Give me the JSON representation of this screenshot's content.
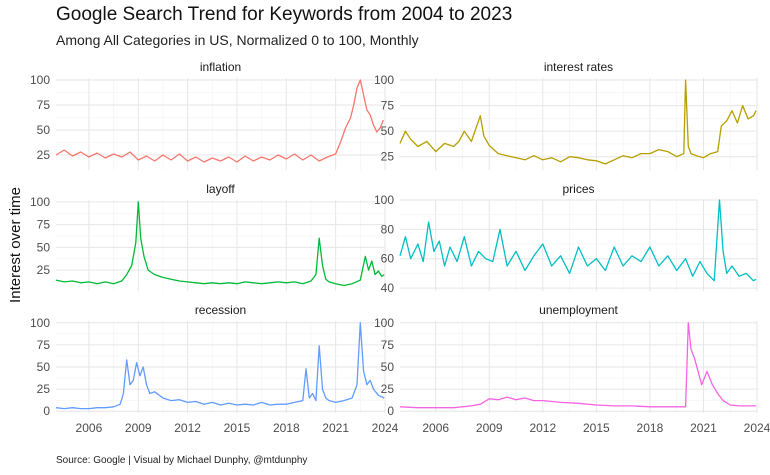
{
  "header": {
    "title": "Google Search Trend for Keywords from 2004 to 2023",
    "subtitle": "Among All Categories in US, Normalized 0 to 100, Monthly"
  },
  "footer": {
    "caption": "Source: Google | Visual by Michael Dunphy, @mtdunphy"
  },
  "chart_data": {
    "type": "line",
    "title": "Google Search Trend for Keywords from 2004 to 2023",
    "ylabel": "Interest over time",
    "xlabel": "",
    "xlim": [
      2004,
      2024
    ],
    "xticks": [
      2006,
      2009,
      2012,
      2015,
      2018,
      2021,
      2024
    ],
    "series": [
      {
        "name": "inflation",
        "color": "#F8766D",
        "ylim": [
          10,
          102
        ],
        "yticks": [
          25,
          50,
          75,
          100
        ],
        "x": [
          2004,
          2004.5,
          2005,
          2005.5,
          2006,
          2006.5,
          2007,
          2007.5,
          2008,
          2008.5,
          2009,
          2009.5,
          2010,
          2010.5,
          2011,
          2011.5,
          2012,
          2012.5,
          2013,
          2013.5,
          2014,
          2014.5,
          2015,
          2015.5,
          2016,
          2016.5,
          2017,
          2017.5,
          2018,
          2018.5,
          2019,
          2019.5,
          2020,
          2020.5,
          2021,
          2021.3,
          2021.6,
          2021.9,
          2022.1,
          2022.3,
          2022.5,
          2022.7,
          2022.9,
          2023.1,
          2023.3,
          2023.5,
          2023.7,
          2023.9
        ],
        "values": [
          25,
          30,
          24,
          28,
          23,
          27,
          22,
          26,
          23,
          28,
          20,
          24,
          19,
          25,
          20,
          26,
          19,
          23,
          18,
          22,
          19,
          23,
          18,
          24,
          19,
          23,
          20,
          25,
          21,
          26,
          20,
          25,
          19,
          23,
          26,
          38,
          52,
          62,
          75,
          92,
          100,
          85,
          70,
          65,
          55,
          48,
          52,
          60
        ]
      },
      {
        "name": "interest rates",
        "color": "#B79F00",
        "ylim": [
          12,
          102
        ],
        "yticks": [
          25,
          50,
          75,
          100
        ],
        "x": [
          2004,
          2004.3,
          2004.6,
          2005,
          2005.5,
          2006,
          2006.5,
          2007,
          2007.3,
          2007.6,
          2008,
          2008.5,
          2008.7,
          2009,
          2009.5,
          2010,
          2010.5,
          2011,
          2011.5,
          2012,
          2012.5,
          2013,
          2013.5,
          2014,
          2014.5,
          2015,
          2015.5,
          2016,
          2016.5,
          2017,
          2017.5,
          2018,
          2018.5,
          2019,
          2019.5,
          2019.9,
          2020,
          2020.15,
          2020.3,
          2020.6,
          2021,
          2021.4,
          2021.8,
          2022,
          2022.3,
          2022.6,
          2022.9,
          2023.2,
          2023.5,
          2023.8,
          2023.95
        ],
        "values": [
          38,
          50,
          42,
          35,
          40,
          30,
          38,
          35,
          40,
          50,
          40,
          65,
          45,
          36,
          28,
          26,
          24,
          22,
          26,
          22,
          24,
          20,
          25,
          24,
          22,
          21,
          18,
          22,
          26,
          24,
          28,
          28,
          32,
          30,
          25,
          28,
          100,
          35,
          28,
          26,
          24,
          28,
          30,
          55,
          60,
          70,
          58,
          75,
          62,
          65,
          70
        ]
      },
      {
        "name": "layoff",
        "color": "#00BA38",
        "ylim": [
          2,
          102
        ],
        "yticks": [
          25,
          50,
          75,
          100
        ],
        "x": [
          2004,
          2004.5,
          2005,
          2005.5,
          2006,
          2006.5,
          2007,
          2007.5,
          2008,
          2008.3,
          2008.6,
          2008.85,
          2009,
          2009.15,
          2009.35,
          2009.6,
          2010,
          2010.5,
          2011,
          2011.5,
          2012,
          2012.5,
          2013,
          2013.5,
          2014,
          2014.5,
          2015,
          2015.5,
          2016,
          2016.5,
          2017,
          2017.5,
          2018,
          2018.5,
          2019,
          2019.5,
          2019.8,
          2020,
          2020.2,
          2020.4,
          2020.6,
          2021,
          2021.5,
          2022,
          2022.5,
          2022.8,
          2023,
          2023.2,
          2023.4,
          2023.6,
          2023.8,
          2023.95
        ],
        "values": [
          14,
          12,
          13,
          11,
          12,
          10,
          12,
          10,
          13,
          20,
          30,
          55,
          100,
          60,
          40,
          25,
          20,
          17,
          15,
          13,
          12,
          11,
          10,
          11,
          10,
          11,
          10,
          12,
          11,
          10,
          11,
          12,
          11,
          12,
          10,
          13,
          20,
          60,
          30,
          15,
          12,
          10,
          8,
          10,
          14,
          40,
          25,
          35,
          20,
          24,
          18,
          20
        ]
      },
      {
        "name": "prices",
        "color": "#00BFC4",
        "ylim": [
          38,
          100
        ],
        "yticks": [
          40,
          60,
          80,
          100
        ],
        "x": [
          2004,
          2004.3,
          2004.6,
          2005,
          2005.3,
          2005.6,
          2005.9,
          2006.2,
          2006.5,
          2006.8,
          2007.2,
          2007.6,
          2008,
          2008.4,
          2008.8,
          2009.2,
          2009.6,
          2010,
          2010.5,
          2011,
          2011.5,
          2012,
          2012.5,
          2013,
          2013.5,
          2014,
          2014.5,
          2015,
          2015.5,
          2016,
          2016.5,
          2017,
          2017.5,
          2018,
          2018.5,
          2019,
          2019.5,
          2020,
          2020.4,
          2020.8,
          2021.2,
          2021.6,
          2021.9,
          2022.1,
          2022.3,
          2022.6,
          2023,
          2023.4,
          2023.8,
          2023.95
        ],
        "values": [
          62,
          75,
          60,
          70,
          58,
          85,
          65,
          72,
          55,
          68,
          58,
          75,
          55,
          65,
          60,
          58,
          80,
          55,
          65,
          52,
          62,
          70,
          55,
          62,
          50,
          68,
          55,
          60,
          52,
          68,
          55,
          62,
          58,
          68,
          55,
          62,
          52,
          60,
          48,
          58,
          50,
          45,
          100,
          65,
          50,
          55,
          48,
          50,
          45,
          46
        ]
      },
      {
        "name": "recession",
        "color": "#619CFF",
        "ylim": [
          -2,
          102
        ],
        "yticks": [
          0,
          25,
          50,
          75,
          100
        ],
        "x": [
          2004,
          2004.5,
          2005,
          2005.5,
          2006,
          2006.5,
          2007,
          2007.5,
          2007.9,
          2008.1,
          2008.3,
          2008.5,
          2008.7,
          2008.9,
          2009.1,
          2009.3,
          2009.5,
          2009.7,
          2010,
          2010.5,
          2011,
          2011.5,
          2012,
          2012.5,
          2013,
          2013.5,
          2014,
          2014.5,
          2015,
          2015.5,
          2016,
          2016.5,
          2017,
          2017.5,
          2018,
          2018.5,
          2019,
          2019.2,
          2019.4,
          2019.6,
          2019.8,
          2020,
          2020.2,
          2020.4,
          2020.6,
          2021,
          2021.5,
          2022,
          2022.3,
          2022.5,
          2022.7,
          2022.9,
          2023.1,
          2023.3,
          2023.6,
          2023.95
        ],
        "values": [
          4,
          3,
          4,
          3,
          3,
          4,
          4,
          5,
          8,
          20,
          58,
          30,
          35,
          55,
          40,
          50,
          30,
          20,
          22,
          15,
          12,
          13,
          10,
          11,
          8,
          10,
          7,
          9,
          7,
          8,
          7,
          10,
          7,
          8,
          8,
          10,
          12,
          48,
          15,
          20,
          12,
          74,
          25,
          15,
          12,
          10,
          12,
          15,
          30,
          100,
          45,
          30,
          35,
          25,
          18,
          15
        ]
      },
      {
        "name": "unemployment",
        "color": "#F564E3",
        "ylim": [
          -2,
          102
        ],
        "yticks": [
          0,
          25,
          50,
          75,
          100
        ],
        "x": [
          2004,
          2005,
          2006,
          2007,
          2008,
          2008.5,
          2009,
          2009.5,
          2010,
          2010.5,
          2011,
          2011.5,
          2012,
          2013,
          2014,
          2015,
          2016,
          2017,
          2018,
          2019,
          2020,
          2020.15,
          2020.3,
          2020.5,
          2020.7,
          2020.9,
          2021.2,
          2021.5,
          2021.8,
          2022.1,
          2022.5,
          2023,
          2023.5,
          2023.95
        ],
        "values": [
          5,
          4,
          4,
          4,
          6,
          8,
          14,
          13,
          16,
          13,
          15,
          12,
          12,
          10,
          9,
          7,
          6,
          6,
          5,
          5,
          5,
          100,
          70,
          60,
          45,
          30,
          45,
          30,
          20,
          12,
          7,
          6,
          6,
          6
        ]
      }
    ]
  }
}
